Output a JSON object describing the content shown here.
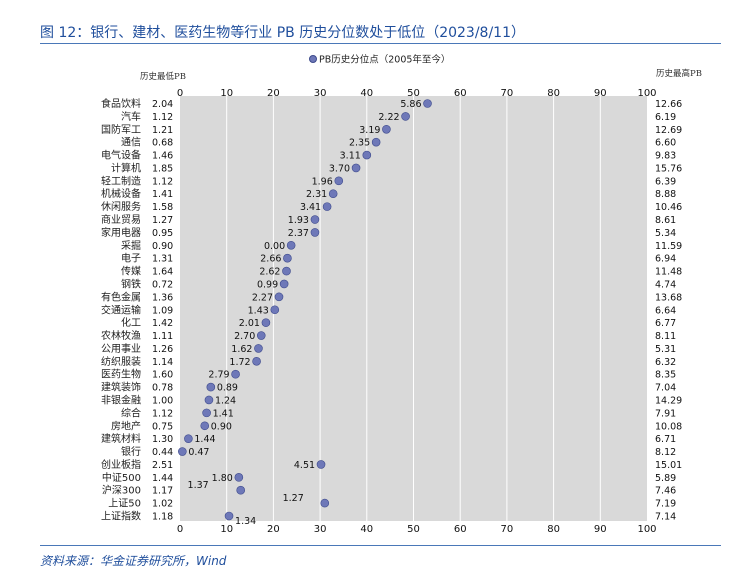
{
  "title": "图 12：银行、建材、医药生物等行业 PB 历史分位数处于低位（2023/8/11）",
  "source": "资料来源：华金证券研究所，Wind",
  "colors": {
    "point": "#6e78b8",
    "point_stroke": "#3d4a8c",
    "plot_bg": "#d9d9d9",
    "grid": "#ffffff",
    "title": "#1f4e9c"
  },
  "chart_data": {
    "type": "scatter",
    "legend": "PB历史分位点（2005年至今）",
    "legend_position": "top",
    "left_axis_label": "历史最低PB",
    "right_axis_label": "历史最高PB",
    "xlim": [
      0,
      100
    ],
    "x_ticks": [
      0,
      10,
      20,
      30,
      40,
      50,
      60,
      70,
      80,
      90,
      100
    ],
    "grid": true,
    "rows": [
      {
        "category": "食品饮料",
        "min_pb": "2.04",
        "max_pb": "12.66",
        "percentile": 53.0,
        "current_pb": "5.86"
      },
      {
        "category": "汽车",
        "min_pb": "1.12",
        "max_pb": "6.19",
        "percentile": 48.3,
        "current_pb": "2.22"
      },
      {
        "category": "国防军工",
        "min_pb": "1.21",
        "max_pb": "12.69",
        "percentile": 44.2,
        "current_pb": "3.19"
      },
      {
        "category": "通信",
        "min_pb": "0.68",
        "max_pb": "6.60",
        "percentile": 42.0,
        "current_pb": "2.35"
      },
      {
        "category": "电气设备",
        "min_pb": "1.46",
        "max_pb": "9.83",
        "percentile": 40.0,
        "current_pb": "3.11"
      },
      {
        "category": "计算机",
        "min_pb": "1.85",
        "max_pb": "15.76",
        "percentile": 37.7,
        "current_pb": "3.70"
      },
      {
        "category": "轻工制造",
        "min_pb": "1.12",
        "max_pb": "6.39",
        "percentile": 34.0,
        "current_pb": "1.96"
      },
      {
        "category": "机械设备",
        "min_pb": "1.41",
        "max_pb": "8.88",
        "percentile": 32.8,
        "current_pb": "2.31"
      },
      {
        "category": "休闲服务",
        "min_pb": "1.58",
        "max_pb": "10.46",
        "percentile": 31.5,
        "current_pb": "3.41"
      },
      {
        "category": "商业贸易",
        "min_pb": "1.27",
        "max_pb": "8.61",
        "percentile": 28.9,
        "current_pb": "1.93"
      },
      {
        "category": "家用电器",
        "min_pb": "0.95",
        "max_pb": "5.34",
        "percentile": 28.9,
        "current_pb": "2.37"
      },
      {
        "category": "采掘",
        "min_pb": "0.90",
        "max_pb": "11.59",
        "percentile": 23.8,
        "current_pb": "0.00"
      },
      {
        "category": "电子",
        "min_pb": "1.31",
        "max_pb": "6.94",
        "percentile": 23.0,
        "current_pb": "2.66"
      },
      {
        "category": "传媒",
        "min_pb": "1.64",
        "max_pb": "11.48",
        "percentile": 22.8,
        "current_pb": "2.62"
      },
      {
        "category": "钢铁",
        "min_pb": "0.72",
        "max_pb": "4.74",
        "percentile": 22.3,
        "current_pb": "0.99"
      },
      {
        "category": "有色金属",
        "min_pb": "1.36",
        "max_pb": "13.68",
        "percentile": 21.2,
        "current_pb": "2.27"
      },
      {
        "category": "交通运输",
        "min_pb": "1.09",
        "max_pb": "6.64",
        "percentile": 20.3,
        "current_pb": "1.43"
      },
      {
        "category": "化工",
        "min_pb": "1.42",
        "max_pb": "6.77",
        "percentile": 18.4,
        "current_pb": "2.01"
      },
      {
        "category": "农林牧渔",
        "min_pb": "1.11",
        "max_pb": "8.11",
        "percentile": 17.4,
        "current_pb": "2.70"
      },
      {
        "category": "公用事业",
        "min_pb": "1.26",
        "max_pb": "5.31",
        "percentile": 16.8,
        "current_pb": "1.62"
      },
      {
        "category": "纺织服装",
        "min_pb": "1.14",
        "max_pb": "6.32",
        "percentile": 16.4,
        "current_pb": "1.72"
      },
      {
        "category": "医药生物",
        "min_pb": "1.60",
        "max_pb": "8.35",
        "percentile": 11.9,
        "current_pb": "2.79"
      },
      {
        "category": "建筑装饰",
        "min_pb": "0.78",
        "max_pb": "7.04",
        "percentile": 6.6,
        "current_pb": "0.89"
      },
      {
        "category": "非银金融",
        "min_pb": "1.00",
        "max_pb": "14.29",
        "percentile": 6.2,
        "current_pb": "1.24"
      },
      {
        "category": "综合",
        "min_pb": "1.12",
        "max_pb": "7.91",
        "percentile": 5.7,
        "current_pb": "1.41"
      },
      {
        "category": "房地产",
        "min_pb": "0.75",
        "max_pb": "10.08",
        "percentile": 5.3,
        "current_pb": "0.90"
      },
      {
        "category": "建筑材料",
        "min_pb": "1.30",
        "max_pb": "6.71",
        "percentile": 1.8,
        "current_pb": "1.44"
      },
      {
        "category": "银行",
        "min_pb": "0.44",
        "max_pb": "8.12",
        "percentile": 0.5,
        "current_pb": "0.47"
      },
      {
        "category": "创业板指",
        "min_pb": "2.51",
        "max_pb": "15.01",
        "percentile": 30.2,
        "current_pb": "4.51"
      },
      {
        "category": "中证500",
        "min_pb": "1.44",
        "max_pb": "5.89",
        "percentile": 12.6,
        "current_pb": "1.80"
      },
      {
        "category": "沪深300",
        "min_pb": "1.17",
        "max_pb": "7.46",
        "percentile": 13.0,
        "current_pb": "1.37"
      },
      {
        "category": "上证50",
        "min_pb": "1.02",
        "max_pb": "7.19",
        "percentile": 31.0,
        "current_pb": "1.27"
      },
      {
        "category": "上证指数",
        "min_pb": "1.18",
        "max_pb": "7.14",
        "percentile": 10.5,
        "current_pb": "1.34"
      }
    ]
  }
}
